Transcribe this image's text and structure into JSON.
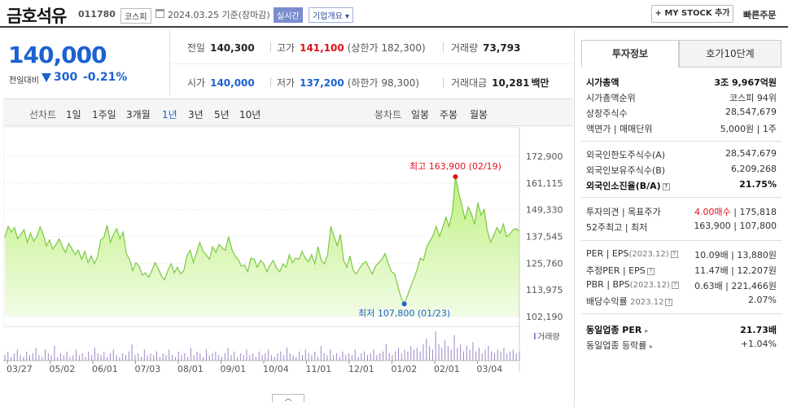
{
  "header": {
    "name": "금호석유",
    "code": "011780",
    "market": "코스피",
    "date": "2024.03.25 기준(장마감)",
    "realtime": "실시간",
    "corp_info": "기업개요 ▾",
    "my_stock": "+ MY STOCK 추가",
    "quick_order": "빠른주문"
  },
  "price": {
    "current": "140,000",
    "compare_label": "전일대비",
    "change": "300",
    "change_pct": "-0.21%"
  },
  "quotes": {
    "prev_label": "전일",
    "prev": "140,300",
    "high_label": "고가",
    "high": "141,100",
    "upper_limit": "(상한가 182,300)",
    "volume_label": "거래량",
    "volume": "73,793",
    "open_label": "시가",
    "open": "140,000",
    "low_label": "저가",
    "low": "137,200",
    "lower_limit": "(하한가 98,300)",
    "amount_label": "거래대금",
    "amount": "10,281",
    "amount_unit": "백만"
  },
  "range_bar": {
    "line_chart": "선차트",
    "periods": [
      "1일",
      "1주일",
      "3개월",
      "1년",
      "3년",
      "5년",
      "10년"
    ],
    "active": "1년",
    "candle_chart": "봉차트",
    "candle_periods": [
      "일봉",
      "주봉",
      "월봉"
    ]
  },
  "chart_data": {
    "type": "area",
    "y_ticks": [
      "172,900",
      "161,115",
      "149,330",
      "137,545",
      "125,760",
      "113,975",
      "102,190"
    ],
    "ylim": [
      102190,
      172900
    ],
    "x_ticks": [
      "03/27",
      "05/02",
      "06/01",
      "07/03",
      "08/01",
      "09/01",
      "10/04",
      "11/01",
      "12/01",
      "01/02",
      "02/01",
      "03/04"
    ],
    "series": [
      {
        "values": [
          137000,
          142000,
          139500,
          141500,
          136500,
          138500,
          140500,
          135000,
          139000,
          135500,
          137500,
          141800,
          138500,
          133500,
          136000,
          132000,
          134000,
          136500,
          133000,
          130500,
          134500,
          132000,
          129500,
          131500,
          127500,
          131000,
          126000,
          129000,
          125500,
          128500,
          136000,
          137200,
          142500,
          135000,
          138500,
          141000,
          136500,
          139500,
          130000,
          127500,
          122500,
          126000,
          124500,
          120500,
          121500,
          119500,
          122500,
          126000,
          123500,
          120000,
          118500,
          122500,
          125500,
          121500,
          124000,
          121000,
          122500,
          129000,
          131500,
          126000,
          130500,
          135000,
          131000,
          129500,
          127500,
          133000,
          130500,
          134000,
          132500,
          131500,
          137500,
          132000,
          129000,
          127500,
          124500,
          125000,
          122000,
          128000,
          127500,
          124000,
          127000,
          125500,
          122000,
          125000,
          127000,
          123500,
          122000,
          125500,
          124000,
          129500,
          126000,
          128000,
          127500,
          131000,
          128000,
          126500,
          129500,
          125500,
          133000,
          127000,
          125500,
          129500,
          142000,
          137500,
          133500,
          138500,
          127000,
          124000,
          129000,
          122500,
          121000,
          123500,
          125500,
          126500,
          123500,
          121000,
          124500,
          126000,
          127500,
          130000,
          125500,
          122000,
          121000,
          115500,
          110500,
          107800,
          111500,
          115500,
          119000,
          123000,
          128000,
          127000,
          133000,
          135500,
          138000,
          142000,
          137500,
          141500,
          146000,
          142000,
          148000,
          163900,
          157000,
          151500,
          145000,
          150500,
          147500,
          143000,
          152500,
          147000,
          149500,
          140000,
          135000,
          138000,
          141500,
          139000,
          143000,
          137500,
          138500,
          140500,
          141000,
          140000
        ]
      }
    ],
    "high_label": "최고 163,900 (02/19)",
    "low_label": "최저 107,800 (01/23)",
    "volume_label": "거래량",
    "volume": [
      3,
      5,
      2,
      4,
      6,
      3,
      2,
      5,
      3,
      4,
      7,
      3,
      2,
      6,
      4,
      3,
      8,
      2,
      4,
      3,
      5,
      2,
      3,
      6,
      3,
      4,
      2,
      5,
      3,
      7,
      4,
      3,
      5,
      2,
      4,
      6,
      3,
      2,
      4,
      3,
      5,
      9,
      3,
      4,
      2,
      6,
      3,
      4,
      3,
      5,
      2,
      4,
      3,
      6,
      3,
      2,
      5,
      3,
      4,
      2,
      7,
      3,
      5,
      4,
      2,
      6,
      3,
      4,
      5,
      3,
      2,
      4,
      7,
      3,
      5,
      2,
      4,
      3,
      6,
      3,
      4,
      2,
      5,
      3,
      4,
      6,
      3,
      2,
      4,
      5,
      3,
      7,
      4,
      3,
      2,
      5,
      3,
      6,
      4,
      3,
      5,
      2,
      8,
      4,
      3,
      6,
      3,
      4,
      2,
      5,
      3,
      4,
      3,
      6,
      2,
      4,
      5,
      3,
      4,
      6,
      3,
      4,
      5,
      9,
      4,
      3,
      5,
      7,
      4,
      6,
      5,
      8,
      6,
      7,
      5,
      9,
      12,
      8,
      6,
      16,
      9,
      7,
      11,
      8,
      6,
      14,
      7,
      9,
      5,
      8,
      6,
      10,
      5,
      7,
      4,
      6,
      8,
      5,
      4,
      6,
      5,
      7,
      4,
      5,
      6,
      4,
      5
    ]
  },
  "side": {
    "tabs": [
      "투자정보",
      "호가10단계"
    ],
    "market_cap_label": "시가총액",
    "market_cap": "3조 9,967억원",
    "cap_rank_label": "시가총액순위",
    "cap_rank": "코스피 94위",
    "shares_label": "상장주식수",
    "shares": "28,547,679",
    "par_label": "액면가 | 매매단위",
    "par": "5,000원 | 1주",
    "foreign_limit_label": "외국인한도주식수(A)",
    "foreign_limit": "28,547,679",
    "foreign_hold_label": "외국인보유주식수(B)",
    "foreign_hold": "6,209,268",
    "foreign_ratio_label": "외국인소진율(B/A)",
    "foreign_ratio": "21.75%",
    "opinion_label": "투자의견 | 목표주가",
    "opinion": "4.00매수",
    "target": "| 175,818",
    "w52_label": "52주최고 | 최저",
    "w52": "163,900 | 107,800",
    "per_label": "PER | EPS",
    "per_year": "(2023.12)",
    "per": "10.09배 | 13,880원",
    "est_per_label": "추정PER | EPS",
    "est_per": "11.47배 | 12,207원",
    "pbr_label": "PBR | BPS",
    "pbr_year": "(2023.12)",
    "pbr": "0.63배 | 221,466원",
    "div_label": "배당수익률",
    "div_year": "2023.12",
    "div": "2.07%",
    "ind_per_label": "동일업종 PER",
    "ind_per": "21.73배",
    "ind_rate_label": "동일업종 등락률",
    "ind_rate": "+1.04%"
  }
}
